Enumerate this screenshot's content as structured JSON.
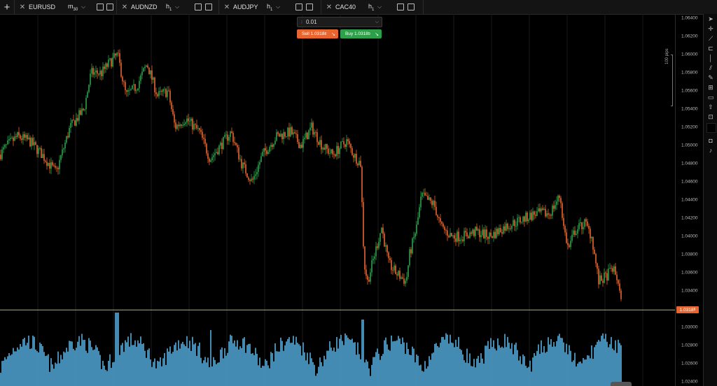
{
  "tabs": [
    {
      "symbol": "EURUSD",
      "tf_base": "m",
      "tf_sub": "30"
    },
    {
      "symbol": "AUDNZD",
      "tf_base": "h",
      "tf_sub": "1"
    },
    {
      "symbol": "AUDJPY",
      "tf_base": "h",
      "tf_sub": "1"
    },
    {
      "symbol": "CAC40",
      "tf_base": "h",
      "tf_sub": "1"
    }
  ],
  "order": {
    "quantity": "0.01",
    "sell_label": "Sell 1.0318",
    "sell_sup": "8",
    "buy_label": "Buy 1.0318",
    "buy_sup": "9"
  },
  "axis_ticks": [
    "1.0640",
    "1.0620",
    "1.0600",
    "1.0580",
    "1.0560",
    "1.0540",
    "1.0520",
    "1.0500",
    "1.0480",
    "1.0460",
    "1.0440",
    "1.0420",
    "1.0400",
    "1.0380",
    "1.0360",
    "1.0340",
    "1.0300",
    "1.0280",
    "1.0260",
    "1.0240"
  ],
  "axis_tick_sup": "0",
  "current_price": "1.0318",
  "current_price_sup": "8",
  "pips_label": "100 pips",
  "colors": {
    "up": "#2ea04a",
    "down": "#e8652f",
    "volume": "#4fa3d1",
    "price_line": "#b8b070"
  },
  "toolbar_icons": [
    "cursor-icon",
    "crosshair-icon",
    "trend-line-icon",
    "fibonacci-icon",
    "vertical-line-icon",
    "channel-icon",
    "pencil-icon",
    "pattern-icon",
    "rectangle-icon",
    "shapes-icon",
    "measure-icon",
    "color-swatch-icon",
    "screenshot-icon",
    "alert-bell-icon"
  ],
  "chart_data": {
    "type": "candlestick",
    "symbol": "EURUSD",
    "timeframe": "m30",
    "ylim": [
      1.0235,
      1.0645
    ],
    "last_price": 1.03188,
    "anchors": [
      [
        0,
        1.049
      ],
      [
        10,
        1.05
      ],
      [
        25,
        1.051
      ],
      [
        42,
        1.0505
      ],
      [
        60,
        1.049
      ],
      [
        80,
        1.047
      ],
      [
        100,
        1.052
      ],
      [
        120,
        1.054
      ],
      [
        130,
        1.058
      ],
      [
        145,
        1.058
      ],
      [
        155,
        1.059
      ],
      [
        168,
        1.06
      ],
      [
        180,
        1.0555
      ],
      [
        195,
        1.0565
      ],
      [
        210,
        1.059
      ],
      [
        225,
        1.0555
      ],
      [
        240,
        1.056
      ],
      [
        250,
        1.052
      ],
      [
        265,
        1.053
      ],
      [
        285,
        1.0515
      ],
      [
        300,
        1.0485
      ],
      [
        315,
        1.05
      ],
      [
        330,
        1.0515
      ],
      [
        345,
        1.048
      ],
      [
        360,
        1.046
      ],
      [
        375,
        1.049
      ],
      [
        395,
        1.051
      ],
      [
        415,
        1.0515
      ],
      [
        430,
        1.05
      ],
      [
        445,
        1.052
      ],
      [
        460,
        1.05
      ],
      [
        475,
        1.049
      ],
      [
        495,
        1.0505
      ],
      [
        505,
        1.049
      ],
      [
        515,
        1.048
      ],
      [
        520,
        1.037
      ],
      [
        525,
        1.035
      ],
      [
        535,
        1.038
      ],
      [
        545,
        1.041
      ],
      [
        555,
        1.037
      ],
      [
        565,
        1.036
      ],
      [
        580,
        1.035
      ],
      [
        585,
        1.038
      ],
      [
        595,
        1.041
      ],
      [
        602,
        1.0445
      ],
      [
        610,
        1.044
      ],
      [
        620,
        1.0435
      ],
      [
        630,
        1.041
      ],
      [
        645,
        1.04
      ],
      [
        660,
        1.04
      ],
      [
        680,
        1.0405
      ],
      [
        700,
        1.04
      ],
      [
        720,
        1.041
      ],
      [
        735,
        1.0415
      ],
      [
        750,
        1.042
      ],
      [
        765,
        1.0425
      ],
      [
        785,
        1.0425
      ],
      [
        800,
        1.0445
      ],
      [
        805,
        1.041
      ],
      [
        812,
        1.0385
      ],
      [
        820,
        1.0405
      ],
      [
        835,
        1.0415
      ],
      [
        845,
        1.04
      ],
      [
        855,
        1.035
      ],
      [
        865,
        1.0355
      ],
      [
        875,
        1.0365
      ],
      [
        883,
        1.035
      ],
      [
        888,
        1.032
      ]
    ]
  }
}
